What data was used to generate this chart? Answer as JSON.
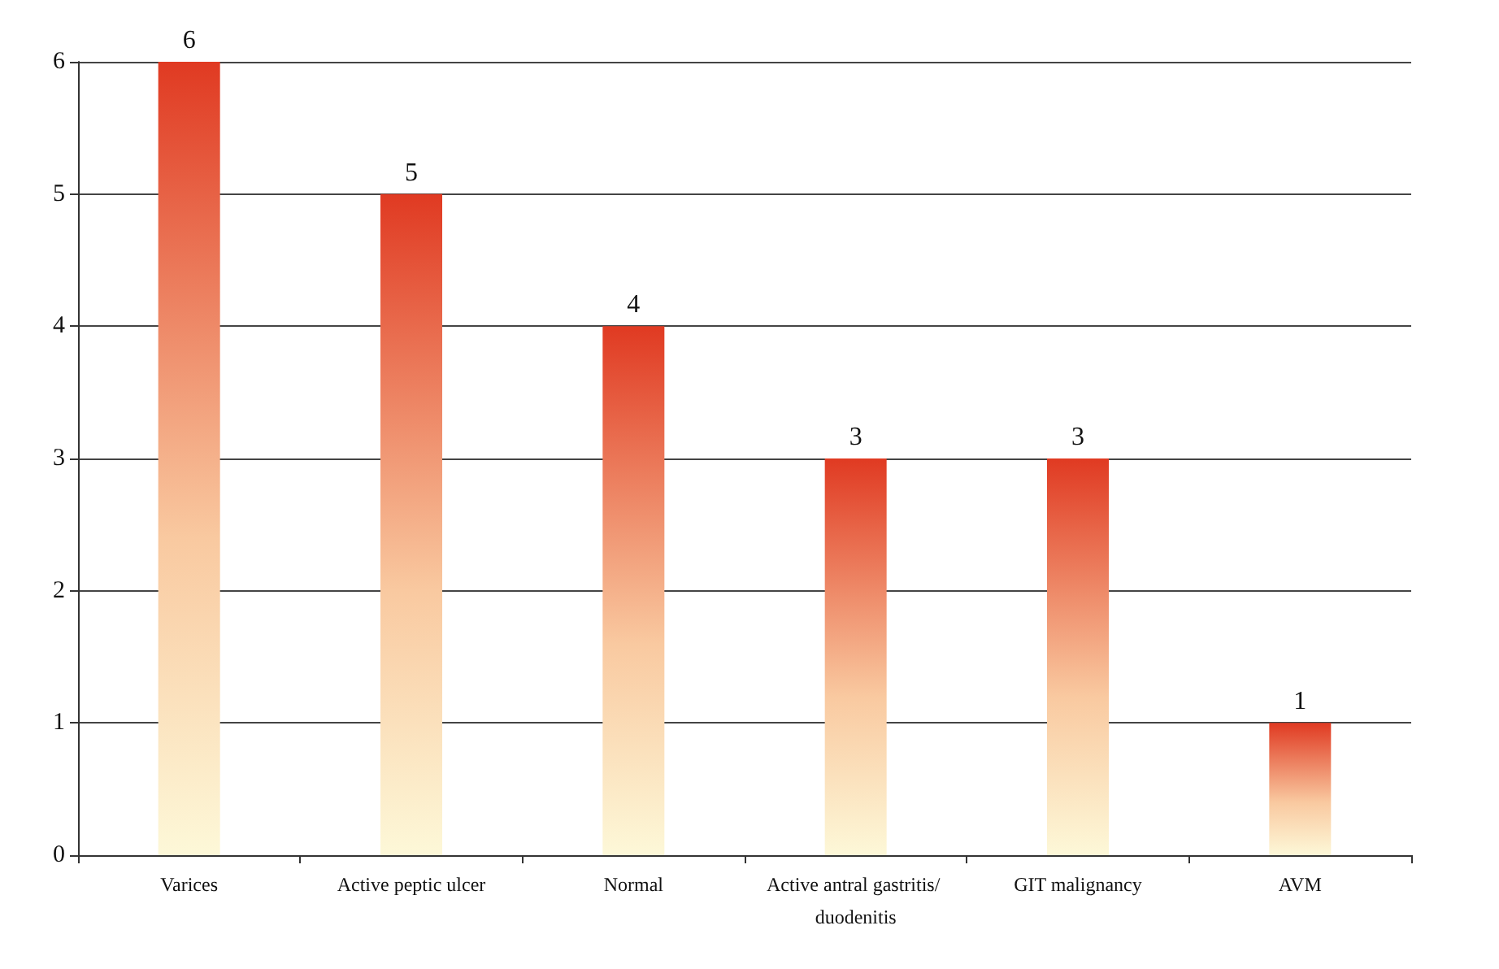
{
  "chart_data": {
    "type": "bar",
    "categories": [
      "Varices",
      "Active peptic ulcer",
      "Normal",
      "Active antral gastritis/ duodenitis",
      "GIT malignancy",
      "AVM"
    ],
    "values": [
      6,
      5,
      4,
      3,
      3,
      1
    ],
    "color": "#e03a22",
    "ylim": [
      0,
      6
    ],
    "yticks": [
      0,
      1,
      2,
      3,
      4,
      5,
      6
    ],
    "grid": "y",
    "data_labels": true
  }
}
